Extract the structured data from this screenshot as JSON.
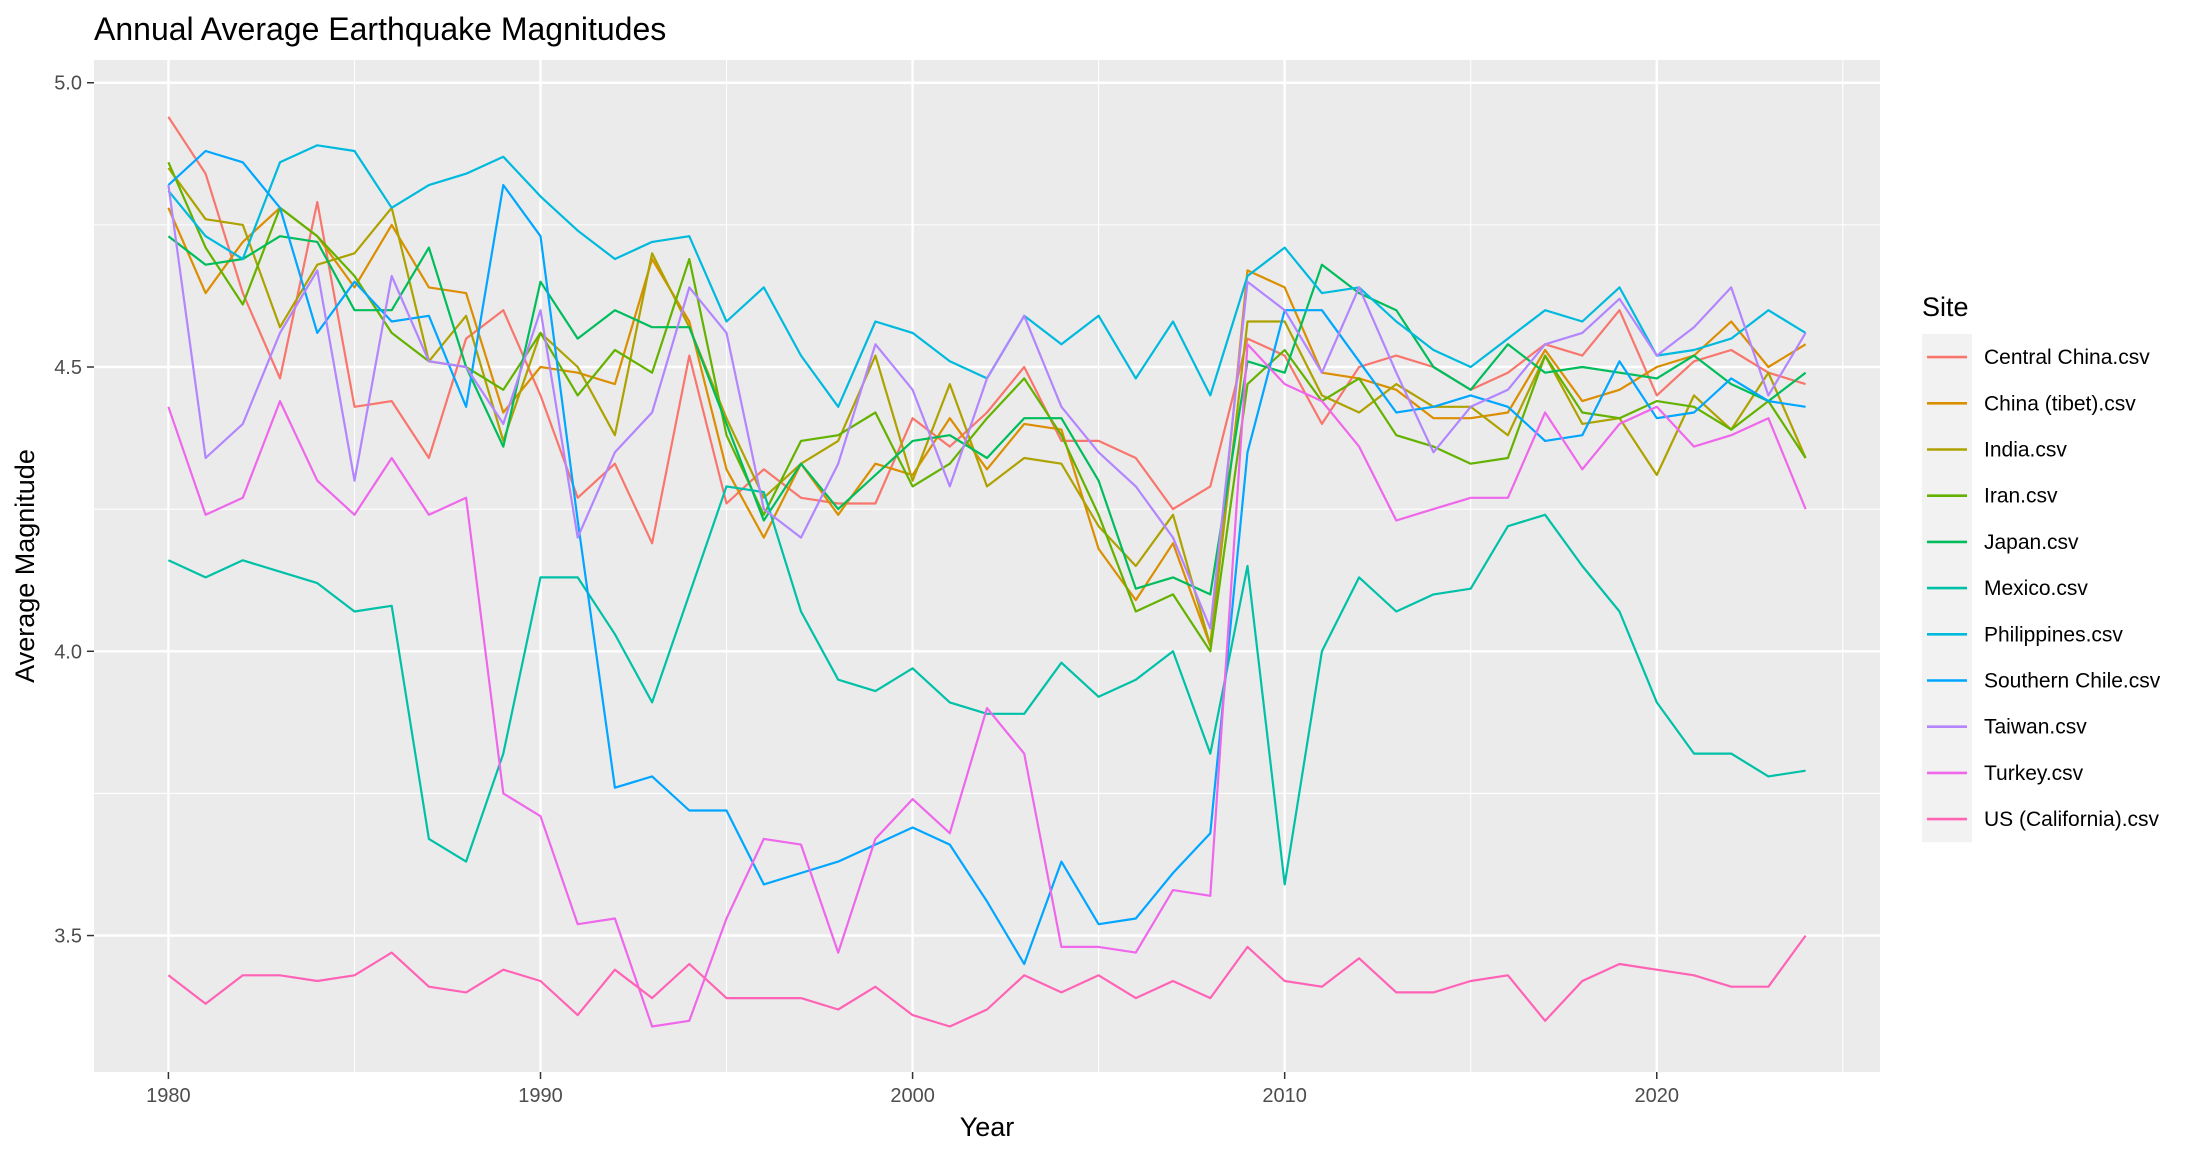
{
  "chart_data": {
    "type": "line",
    "title": "Annual Average Earthquake Magnitudes",
    "xlabel": "Year",
    "ylabel": "Average Magnitude",
    "xlim": [
      1978,
      2026
    ],
    "ylim": [
      3.26,
      5.04
    ],
    "x_ticks": [
      1980,
      1990,
      2000,
      2010,
      2020
    ],
    "y_ticks": [
      3.5,
      4.0,
      4.5,
      5.0
    ],
    "y_tick_labels": [
      "3.5",
      "4.0",
      "4.5",
      "5.0"
    ],
    "grid": true,
    "legend_title": "Site",
    "legend_position": "right",
    "x": [
      1980,
      1981,
      1982,
      1983,
      1984,
      1985,
      1986,
      1987,
      1988,
      1989,
      1990,
      1991,
      1992,
      1993,
      1994,
      1995,
      1996,
      1997,
      1998,
      1999,
      2000,
      2001,
      2002,
      2003,
      2004,
      2005,
      2006,
      2007,
      2008,
      2009,
      2010,
      2011,
      2012,
      2013,
      2014,
      2015,
      2016,
      2017,
      2018,
      2019,
      2020,
      2021,
      2022,
      2023,
      2024
    ],
    "series": [
      {
        "name": "Central China.csv",
        "color": "#F8766D",
        "values": [
          4.94,
          4.84,
          4.63,
          4.48,
          4.79,
          4.43,
          4.44,
          4.34,
          4.55,
          4.6,
          4.45,
          4.27,
          4.33,
          4.19,
          4.52,
          4.26,
          4.32,
          4.27,
          4.26,
          4.26,
          4.41,
          4.36,
          4.42,
          4.5,
          4.37,
          4.37,
          4.34,
          4.25,
          4.29,
          4.55,
          4.52,
          4.4,
          4.5,
          4.52,
          4.5,
          4.46,
          4.49,
          4.54,
          4.52,
          4.6,
          4.45,
          4.51,
          4.53,
          4.49,
          4.47
        ]
      },
      {
        "name": "China (tibet).csv",
        "color": "#DB8E00",
        "values": [
          4.78,
          4.63,
          4.72,
          4.78,
          4.73,
          4.64,
          4.75,
          4.64,
          4.63,
          4.42,
          4.5,
          4.49,
          4.47,
          4.69,
          4.58,
          4.32,
          4.2,
          4.33,
          4.24,
          4.33,
          4.31,
          4.41,
          4.32,
          4.4,
          4.39,
          4.18,
          4.09,
          4.19,
          4.01,
          4.67,
          4.64,
          4.49,
          4.48,
          4.46,
          4.41,
          4.41,
          4.42,
          4.53,
          4.44,
          4.46,
          4.5,
          4.52,
          4.58,
          4.5,
          4.54
        ]
      },
      {
        "name": "India.csv",
        "color": "#AEA200",
        "values": [
          4.85,
          4.76,
          4.75,
          4.57,
          4.68,
          4.7,
          4.78,
          4.51,
          4.59,
          4.37,
          4.56,
          4.5,
          4.38,
          4.7,
          4.57,
          4.41,
          4.27,
          4.33,
          4.37,
          4.52,
          4.3,
          4.47,
          4.29,
          4.34,
          4.33,
          4.22,
          4.15,
          4.24,
          4.01,
          4.58,
          4.58,
          4.45,
          4.42,
          4.47,
          4.43,
          4.43,
          4.38,
          4.52,
          4.4,
          4.41,
          4.31,
          4.45,
          4.39,
          4.49,
          4.34
        ]
      },
      {
        "name": "Iran.csv",
        "color": "#64B200",
        "values": [
          4.86,
          4.71,
          4.61,
          4.78,
          4.73,
          4.66,
          4.56,
          4.51,
          4.5,
          4.46,
          4.56,
          4.45,
          4.53,
          4.49,
          4.69,
          4.38,
          4.24,
          4.37,
          4.38,
          4.42,
          4.29,
          4.33,
          4.41,
          4.48,
          4.38,
          4.24,
          4.07,
          4.1,
          4.0,
          4.47,
          4.53,
          4.44,
          4.48,
          4.38,
          4.36,
          4.33,
          4.34,
          4.52,
          4.42,
          4.41,
          4.44,
          4.43,
          4.39,
          4.44,
          4.34
        ]
      },
      {
        "name": "Japan.csv",
        "color": "#00BD5C",
        "values": [
          4.73,
          4.68,
          4.69,
          4.73,
          4.72,
          4.6,
          4.6,
          4.71,
          4.5,
          4.36,
          4.65,
          4.55,
          4.6,
          4.57,
          4.57,
          4.4,
          4.23,
          4.33,
          4.25,
          4.31,
          4.37,
          4.38,
          4.34,
          4.41,
          4.41,
          4.3,
          4.11,
          4.13,
          4.1,
          4.51,
          4.49,
          4.68,
          4.63,
          4.6,
          4.5,
          4.46,
          4.54,
          4.49,
          4.5,
          4.49,
          4.48,
          4.52,
          4.47,
          4.44,
          4.49
        ]
      },
      {
        "name": "Mexico.csv",
        "color": "#00C1A7",
        "values": [
          4.16,
          4.13,
          4.16,
          4.14,
          4.12,
          4.07,
          4.08,
          3.67,
          3.63,
          3.82,
          4.13,
          4.13,
          4.03,
          3.91,
          4.1,
          4.29,
          4.28,
          4.07,
          3.95,
          3.93,
          3.97,
          3.91,
          3.89,
          3.89,
          3.98,
          3.92,
          3.95,
          4.0,
          3.82,
          4.15,
          3.59,
          4.0,
          4.13,
          4.07,
          4.1,
          4.11,
          4.22,
          4.24,
          4.15,
          4.07,
          3.91,
          3.82,
          3.82,
          3.78,
          3.79
        ]
      },
      {
        "name": "Philippines.csv",
        "color": "#00BADE",
        "values": [
          4.81,
          4.73,
          4.69,
          4.86,
          4.89,
          4.88,
          4.78,
          4.82,
          4.84,
          4.87,
          4.8,
          4.74,
          4.69,
          4.72,
          4.73,
          4.58,
          4.64,
          4.52,
          4.43,
          4.58,
          4.56,
          4.51,
          4.48,
          4.59,
          4.54,
          4.59,
          4.48,
          4.58,
          4.45,
          4.66,
          4.71,
          4.63,
          4.64,
          4.58,
          4.53,
          4.5,
          4.55,
          4.6,
          4.58,
          4.64,
          4.52,
          4.53,
          4.55,
          4.6,
          4.56
        ]
      },
      {
        "name": "Southern Chile.csv",
        "color": "#00A6FF",
        "values": [
          4.82,
          4.88,
          4.86,
          4.78,
          4.56,
          4.65,
          4.58,
          4.59,
          4.43,
          4.82,
          4.73,
          4.23,
          3.76,
          3.78,
          3.72,
          3.72,
          3.59,
          3.61,
          3.63,
          3.66,
          3.69,
          3.66,
          3.56,
          3.45,
          3.63,
          3.52,
          3.53,
          3.61,
          3.68,
          4.35,
          4.6,
          4.6,
          4.51,
          4.42,
          4.43,
          4.45,
          4.43,
          4.37,
          4.38,
          4.51,
          4.41,
          4.42,
          4.48,
          4.44,
          4.43
        ]
      },
      {
        "name": "Taiwan.csv",
        "color": "#B385FF",
        "values": [
          4.82,
          4.34,
          4.4,
          4.56,
          4.67,
          4.3,
          4.66,
          4.51,
          4.5,
          4.4,
          4.6,
          4.2,
          4.35,
          4.42,
          4.64,
          4.56,
          4.25,
          4.2,
          4.33,
          4.54,
          4.46,
          4.29,
          4.48,
          4.59,
          4.43,
          4.35,
          4.29,
          4.2,
          4.04,
          4.65,
          4.6,
          4.49,
          4.64,
          4.49,
          4.35,
          4.43,
          4.46,
          4.54,
          4.56,
          4.62,
          4.52,
          4.57,
          4.64,
          4.45,
          4.56
        ]
      },
      {
        "name": "Turkey.csv",
        "color": "#EF67EB",
        "values": [
          4.43,
          4.24,
          4.27,
          4.44,
          4.3,
          4.24,
          4.34,
          4.24,
          4.27,
          3.75,
          3.71,
          3.52,
          3.53,
          3.34,
          3.35,
          3.53,
          3.67,
          3.66,
          3.47,
          3.67,
          3.74,
          3.68,
          3.9,
          3.82,
          3.48,
          3.48,
          3.47,
          3.58,
          3.57,
          4.54,
          4.47,
          4.44,
          4.36,
          4.23,
          4.25,
          4.27,
          4.27,
          4.42,
          4.32,
          4.4,
          4.43,
          4.36,
          4.38,
          4.41,
          4.25
        ]
      },
      {
        "name": "US (California).csv",
        "color": "#FF63B6",
        "values": [
          3.43,
          3.38,
          3.43,
          3.43,
          3.42,
          3.43,
          3.47,
          3.41,
          3.4,
          3.44,
          3.42,
          3.36,
          3.44,
          3.39,
          3.45,
          3.39,
          3.39,
          3.39,
          3.37,
          3.41,
          3.36,
          3.34,
          3.37,
          3.43,
          3.4,
          3.43,
          3.39,
          3.42,
          3.39,
          3.48,
          3.42,
          3.41,
          3.46,
          3.4,
          3.4,
          3.42,
          3.43,
          3.35,
          3.42,
          3.45,
          3.44,
          3.43,
          3.41,
          3.41,
          3.5
        ]
      }
    ]
  }
}
